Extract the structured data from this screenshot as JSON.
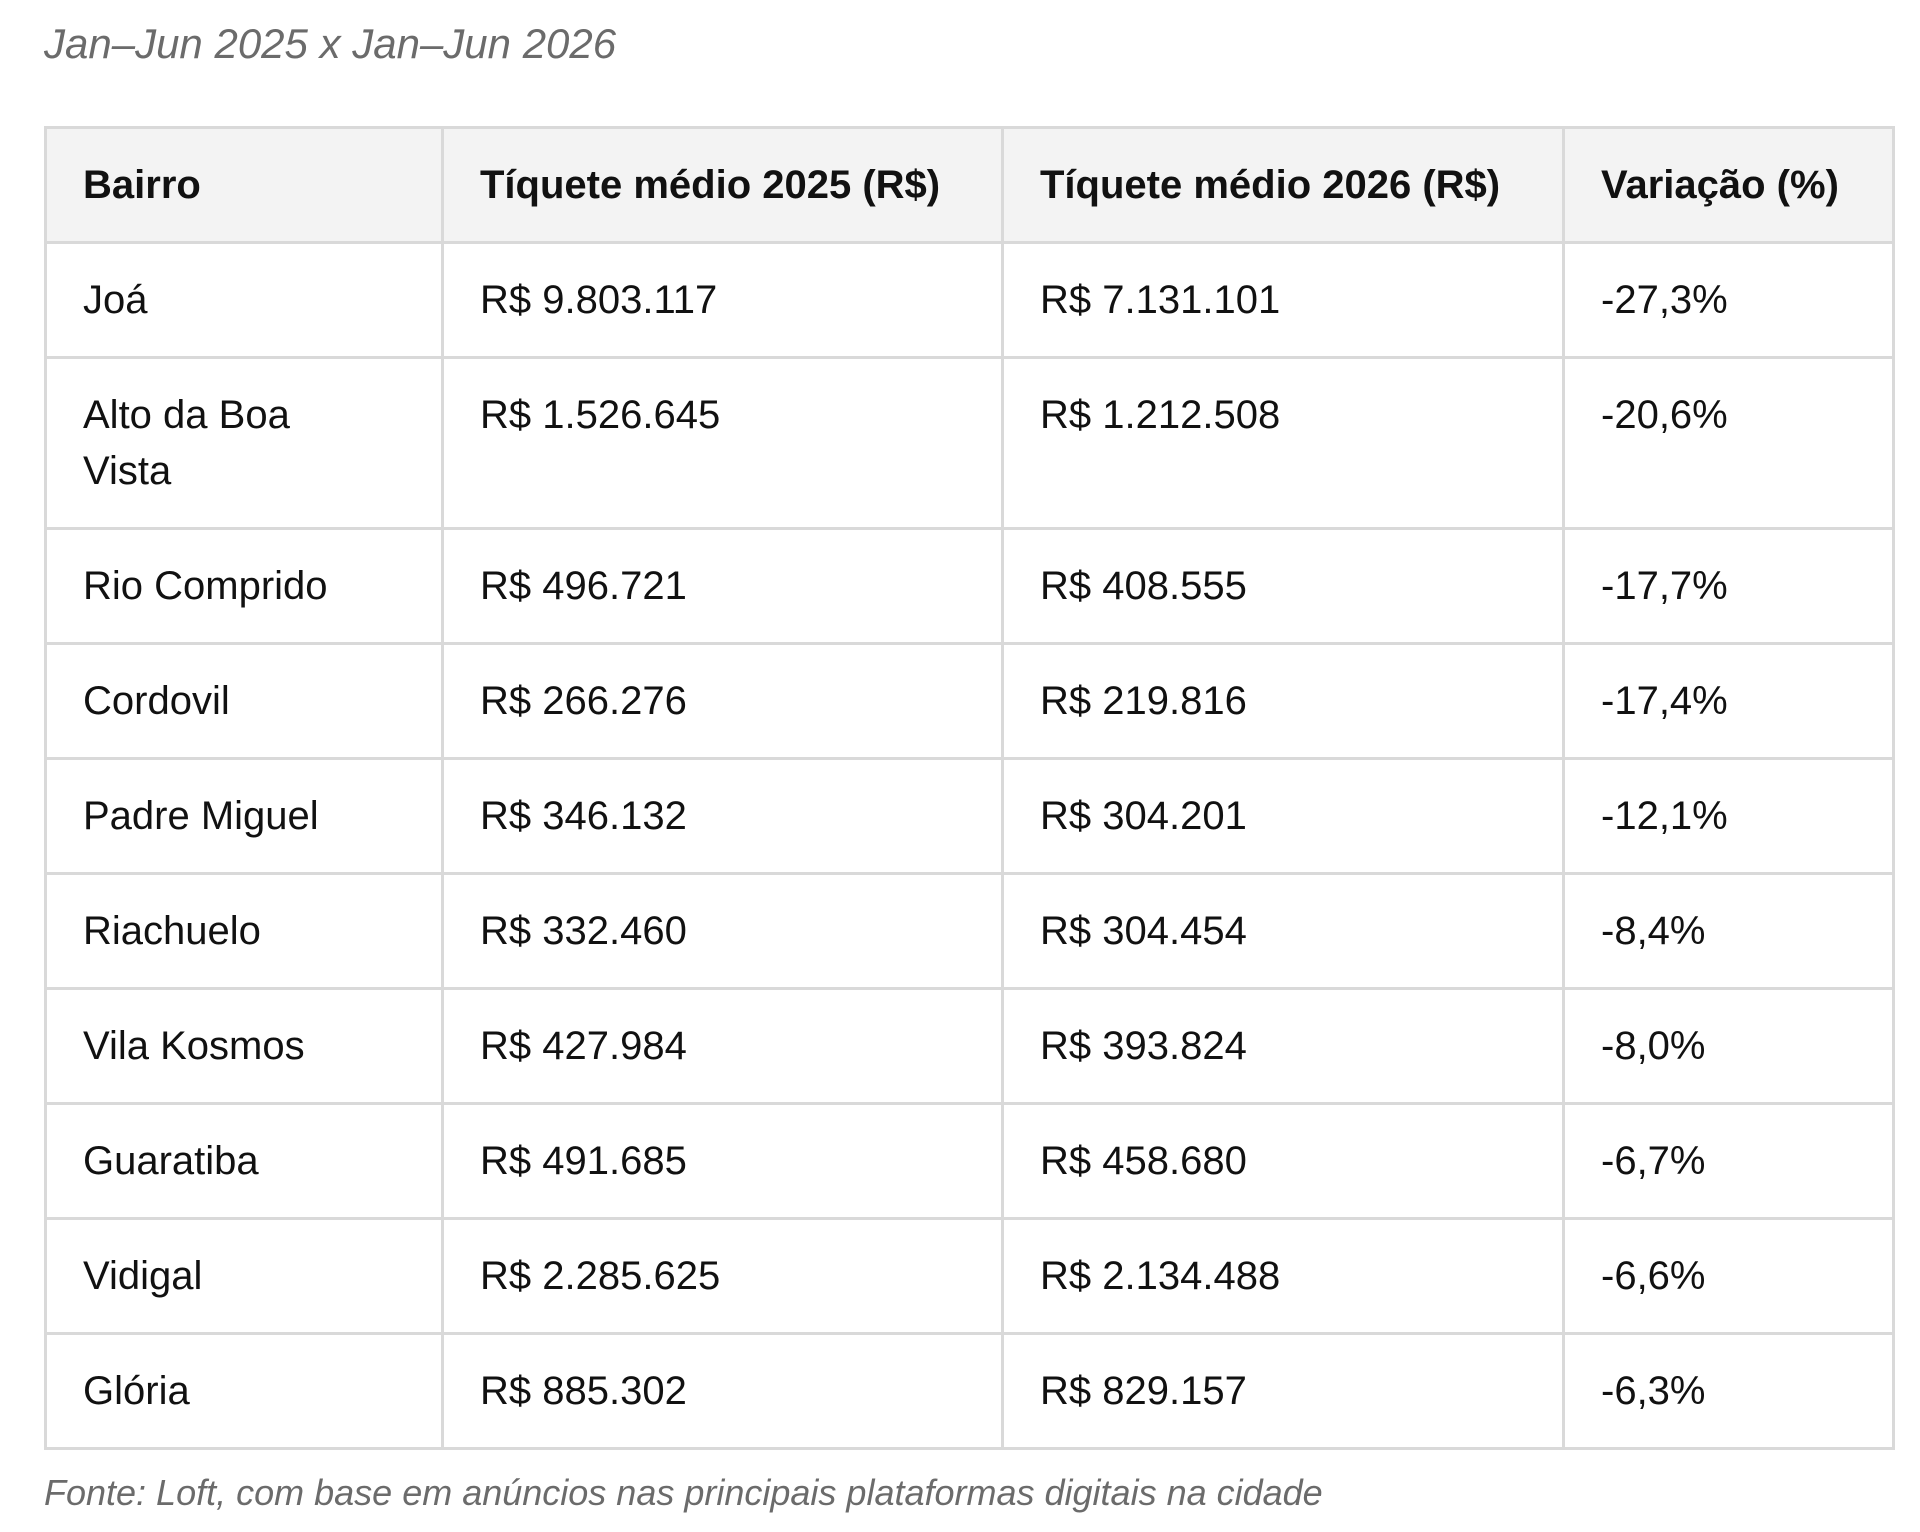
{
  "subtitle": "Jan–Jun 2025 x Jan–Jun 2026",
  "table": {
    "headers": {
      "bairro": "Bairro",
      "ticket_2025": "Tíquete médio 2025 (R$)",
      "ticket_2026": "Tíquete médio 2026 (R$)",
      "variacao": "Variação (%)"
    },
    "rows": [
      {
        "bairro": "Joá",
        "ticket_2025": "R$ 9.803.117",
        "ticket_2026": "R$ 7.131.101",
        "variacao": "-27,3%"
      },
      {
        "bairro": "Alto da Boa Vista",
        "ticket_2025": "R$ 1.526.645",
        "ticket_2026": "R$ 1.212.508",
        "variacao": "-20,6%"
      },
      {
        "bairro": "Rio Comprido",
        "ticket_2025": "R$ 496.721",
        "ticket_2026": "R$ 408.555",
        "variacao": "-17,7%"
      },
      {
        "bairro": "Cordovil",
        "ticket_2025": "R$ 266.276",
        "ticket_2026": "R$ 219.816",
        "variacao": "-17,4%"
      },
      {
        "bairro": "Padre Miguel",
        "ticket_2025": "R$ 346.132",
        "ticket_2026": "R$ 304.201",
        "variacao": "-12,1%"
      },
      {
        "bairro": "Riachuelo",
        "ticket_2025": "R$ 332.460",
        "ticket_2026": "R$ 304.454",
        "variacao": "-8,4%"
      },
      {
        "bairro": "Vila Kosmos",
        "ticket_2025": "R$ 427.984",
        "ticket_2026": "R$ 393.824",
        "variacao": "-8,0%"
      },
      {
        "bairro": "Guaratiba",
        "ticket_2025": "R$ 491.685",
        "ticket_2026": "R$ 458.680",
        "variacao": "-6,7%"
      },
      {
        "bairro": "Vidigal",
        "ticket_2025": "R$ 2.285.625",
        "ticket_2026": "R$ 2.134.488",
        "variacao": "-6,6%"
      },
      {
        "bairro": "Glória",
        "ticket_2025": "R$ 885.302",
        "ticket_2026": "R$ 829.157",
        "variacao": "-6,3%"
      }
    ]
  },
  "footnote": "Fonte: Loft, com base em anúncios nas principais plataformas digitais na cidade",
  "colors": {
    "header_background": "#f3f3f3",
    "border": "#d9d9d9",
    "muted_text": "#6b6b6b"
  }
}
